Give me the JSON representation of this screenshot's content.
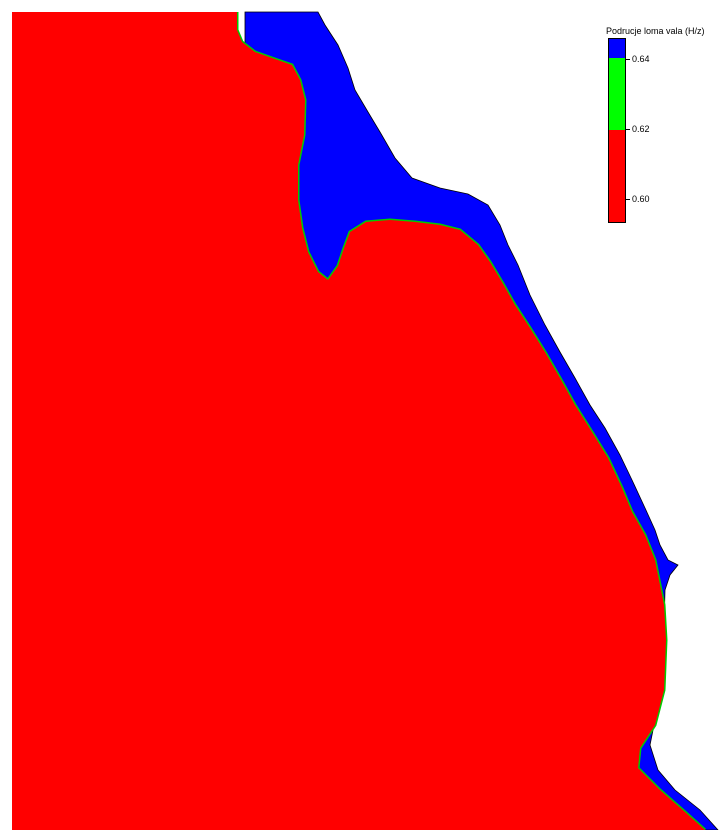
{
  "legend": {
    "title": "Podrucje loma vala (H/z)",
    "colors": {
      "high": "#0000ff",
      "mid": "#00ff00",
      "low": "#ff0000"
    },
    "ticks": [
      {
        "label": "0.64"
      },
      {
        "label": "0.62"
      },
      {
        "label": "0.60"
      }
    ]
  },
  "map": {
    "fill_colors": {
      "land_zone": "#ff0000",
      "coastal_band": "#0000ff",
      "boundary": "#00cc00",
      "outline": "#000000",
      "background": "#ffffff"
    }
  }
}
